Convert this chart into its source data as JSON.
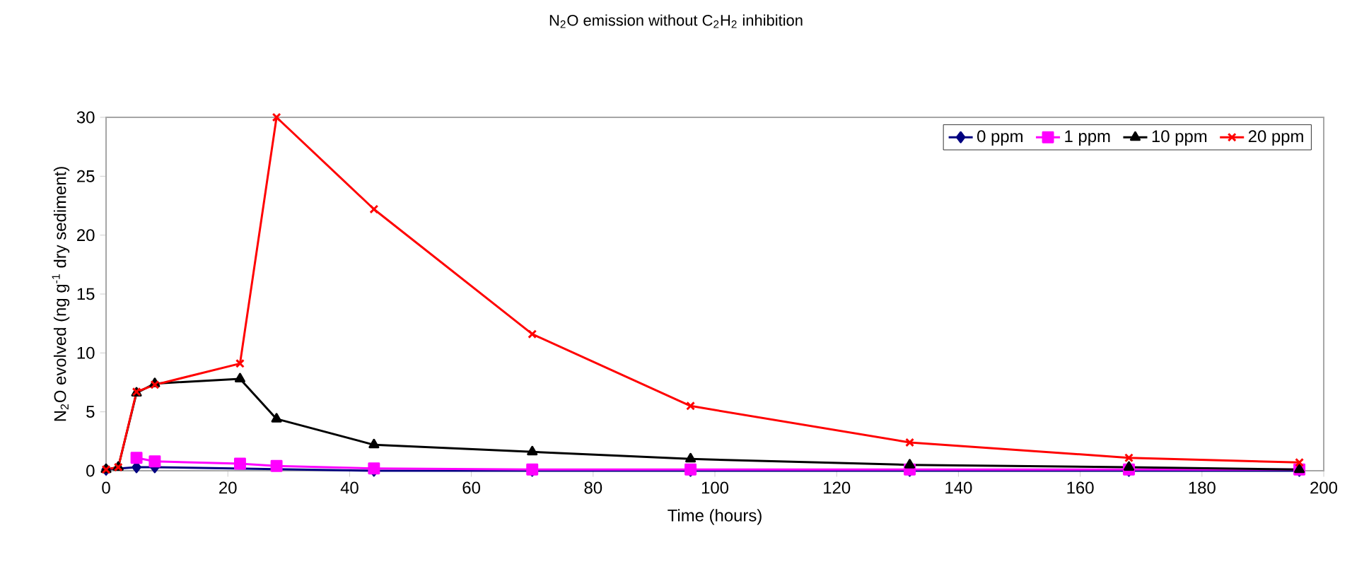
{
  "chart_data": {
    "type": "line",
    "title": "N$_{2}$O emission without C$_{2}$H$_{2}$ inhibition",
    "xlabel": "Time (hours)",
    "ylabel": "N$_{2}$O evolved (ng g$^{-1}$ dry sediment)",
    "x": [
      0,
      2,
      5,
      8,
      22,
      28,
      44,
      70,
      96,
      132,
      168,
      196
    ],
    "series": [
      {
        "name": "0 ppm",
        "color": "#000080",
        "marker": "diamond",
        "values": [
          0.1,
          null,
          0.3,
          0.3,
          null,
          null,
          0,
          0,
          0,
          0,
          0,
          0
        ]
      },
      {
        "name": "1 ppm",
        "color": "#ff00ff",
        "marker": "square",
        "values": [
          null,
          null,
          1.1,
          0.8,
          0.6,
          0.4,
          0.2,
          0.1,
          0.1,
          0.1,
          0.1,
          0.1
        ]
      },
      {
        "name": "10 ppm",
        "color": "#000000",
        "marker": "triangle",
        "values": [
          0.1,
          0.3,
          6.6,
          7.4,
          7.8,
          4.4,
          2.2,
          1.6,
          1.0,
          0.5,
          0.3,
          0.1
        ]
      },
      {
        "name": "20 ppm",
        "color": "#ff0000",
        "marker": "cross",
        "values": [
          0.1,
          0.3,
          6.7,
          7.3,
          9.1,
          30,
          22.2,
          11.6,
          5.5,
          2.4,
          1.1,
          0.7
        ]
      }
    ],
    "xlim": [
      0,
      200
    ],
    "xticks": [
      0,
      20,
      40,
      60,
      80,
      100,
      120,
      140,
      160,
      180,
      200
    ],
    "ylim": [
      0,
      30
    ],
    "yticks": [
      0,
      5,
      10,
      15,
      20,
      25,
      30
    ],
    "legend": "top right",
    "grid": false,
    "line_style": "solid"
  }
}
